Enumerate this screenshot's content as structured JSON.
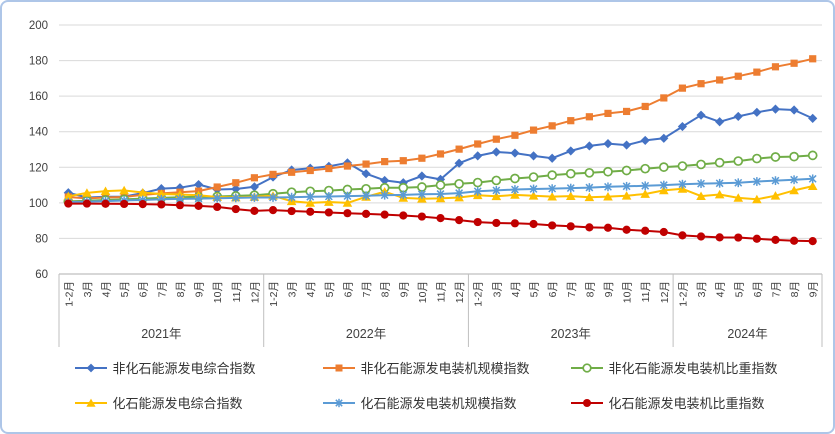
{
  "chart_data": {
    "type": "line",
    "title": "",
    "xlabel": "",
    "ylabel": "",
    "ylim": [
      60,
      200
    ],
    "ytick_step": 20,
    "yticks": [
      60,
      80,
      100,
      120,
      140,
      160,
      180,
      200
    ],
    "grid": true,
    "legend_position": "bottom",
    "year_groups": [
      {
        "label": "2021年",
        "count": 11
      },
      {
        "label": "2022年",
        "count": 11
      },
      {
        "label": "2023年",
        "count": 11
      },
      {
        "label": "2024年",
        "count": 8
      }
    ],
    "month_labels": [
      "1-2月",
      "3月",
      "4月",
      "5月",
      "6月",
      "7月",
      "8月",
      "9月",
      "10月",
      "11月",
      "12月",
      "1-2月",
      "3月",
      "4月",
      "5月",
      "6月",
      "7月",
      "8月",
      "9月",
      "10月",
      "11月",
      "12月",
      "1-2月",
      "3月",
      "4月",
      "5月",
      "6月",
      "7月",
      "8月",
      "9月",
      "10月",
      "11月",
      "12月",
      "1-2月",
      "3月",
      "4月",
      "5月",
      "6月",
      "7月",
      "8月",
      "9月"
    ],
    "series": [
      {
        "name": "非化石能源发电综合指数",
        "color": "#4472C4",
        "marker": "diamond",
        "values": [
          105.7,
          103.0,
          103.4,
          103.5,
          105.5,
          108.0,
          108.5,
          110.3,
          107.5,
          107.8,
          109.0,
          114.5,
          118.5,
          119.5,
          120.5,
          122.5,
          116.4,
          112.6,
          111.3,
          115.1,
          113.2,
          122.3,
          126.4,
          128.6,
          128.0,
          126.4,
          125.1,
          129.2,
          132.0,
          133.3,
          132.5,
          135.1,
          136.3,
          142.9,
          149.3,
          145.6,
          148.6,
          150.9,
          152.7,
          152.2,
          147.5
        ]
      },
      {
        "name": "非化石能源发电装机规模指数",
        "color": "#ED7D31",
        "marker": "square",
        "values": [
          103.3,
          102.5,
          103.0,
          103.3,
          104.5,
          105.3,
          106.0,
          106.6,
          108.9,
          111.3,
          114.1,
          116.0,
          117.2,
          118.2,
          119.3,
          120.7,
          121.8,
          123.2,
          123.7,
          125.1,
          127.5,
          130.2,
          133.1,
          135.8,
          138.0,
          140.9,
          143.3,
          146.2,
          148.4,
          150.3,
          151.4,
          154.2,
          159.0,
          164.5,
          167.0,
          169.1,
          171.2,
          173.5,
          176.5,
          178.5,
          181.0
        ]
      },
      {
        "name": "非化石能源发电装机比重指数",
        "color": "#70AD47",
        "marker": "circle-open",
        "values": [
          100.8,
          101.2,
          101.6,
          102.0,
          102.4,
          102.8,
          103.1,
          103.4,
          103.6,
          103.9,
          104.3,
          105.1,
          106.0,
          106.5,
          106.9,
          107.5,
          107.9,
          108.5,
          108.5,
          108.9,
          110.0,
          110.7,
          111.4,
          112.6,
          113.7,
          114.5,
          115.6,
          116.4,
          116.9,
          117.5,
          118.2,
          119.2,
          120.1,
          120.7,
          121.6,
          122.6,
          123.5,
          124.9,
          125.8,
          126.0,
          126.7
        ]
      },
      {
        "name": "化石能源发电综合指数",
        "color": "#FFC000",
        "marker": "triangle",
        "values": [
          103.7,
          105.6,
          106.6,
          107.0,
          105.8,
          105.0,
          104.7,
          104.3,
          103.3,
          103.0,
          103.4,
          104.0,
          100.9,
          100.0,
          100.5,
          100.0,
          103.4,
          106.3,
          102.8,
          102.3,
          102.5,
          103.0,
          104.3,
          103.7,
          104.5,
          104.0,
          103.5,
          103.8,
          103.2,
          103.5,
          104.0,
          105.0,
          107.0,
          107.9,
          103.8,
          104.7,
          102.8,
          102.0,
          104.0,
          107.0,
          109.4
        ]
      },
      {
        "name": "化石能源发电装机规模指数",
        "color": "#5B9BD5",
        "marker": "asterisk",
        "values": [
          100.4,
          100.7,
          101.0,
          101.3,
          101.6,
          102.0,
          102.2,
          102.4,
          102.6,
          102.8,
          103.0,
          103.0,
          103.2,
          103.4,
          103.6,
          103.8,
          104.0,
          104.3,
          104.5,
          104.8,
          105.0,
          105.5,
          106.5,
          107.0,
          107.5,
          107.8,
          108.0,
          108.3,
          108.6,
          109.0,
          109.3,
          109.6,
          110.0,
          110.5,
          110.8,
          111.0,
          111.3,
          112.0,
          112.5,
          113.0,
          113.5
        ]
      },
      {
        "name": "化石能源发电装机比重指数",
        "color": "#C00000",
        "marker": "circle",
        "values": [
          99.6,
          99.6,
          99.5,
          99.4,
          99.3,
          99.1,
          98.7,
          98.3,
          97.7,
          96.5,
          95.5,
          95.9,
          95.4,
          95.0,
          94.6,
          94.2,
          93.8,
          93.4,
          92.9,
          92.3,
          91.4,
          90.3,
          89.2,
          88.7,
          88.5,
          88.1,
          87.3,
          86.8,
          86.2,
          86.0,
          84.9,
          84.3,
          83.6,
          81.7,
          81.1,
          80.6,
          80.5,
          79.8,
          79.2,
          78.7,
          78.5
        ]
      }
    ],
    "colors": {
      "gridline": "#D9D9D9",
      "axis_line": "#BFBFBF",
      "tick_text": "#404040",
      "panel_border": "#AEC6E8",
      "background": "#FFFFFF"
    }
  }
}
